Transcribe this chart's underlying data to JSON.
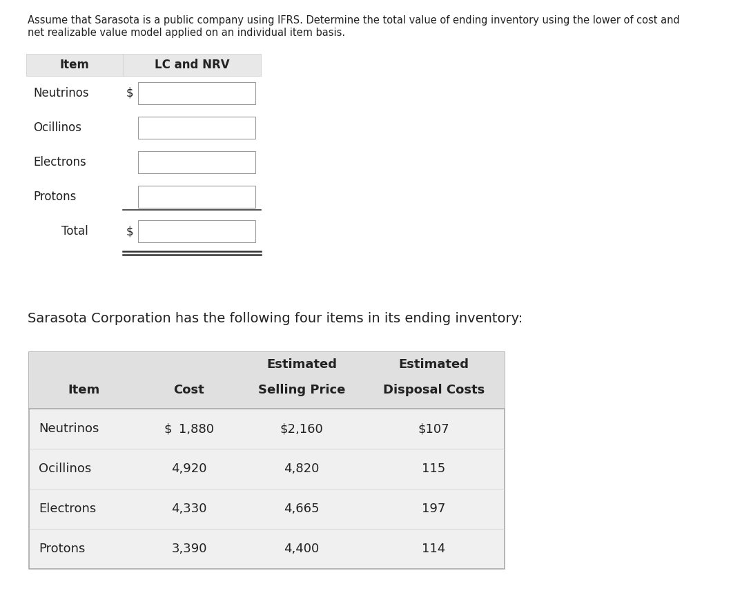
{
  "title_line1": "Assume that Sarasota is a public company using IFRS. Determine the total value of ending inventory using the lower of cost and",
  "title_line2": "net realizable value model applied on an individual item basis.",
  "subtitle_text": "Sarasota Corporation has the following four items in its ending inventory:",
  "input_table": {
    "header": [
      "Item",
      "LC and NRV"
    ],
    "rows": [
      "Neutrinos",
      "Ocillinos",
      "Electrons",
      "Protons"
    ],
    "total_label": "Total",
    "dollar_sign_rows": [
      "Neutrinos",
      "Total"
    ]
  },
  "data_table": {
    "header_row1": [
      "Estimated",
      "Estimated"
    ],
    "header_row2": [
      "Item",
      "Cost",
      "Selling Price",
      "Disposal Costs"
    ],
    "rows": [
      [
        "Neutrinos",
        "$  1,880",
        "$2,160",
        "$107"
      ],
      [
        "Ocillinos",
        "4,920",
        "4,820",
        "115"
      ],
      [
        "Electrons",
        "4,330",
        "4,665",
        "197"
      ],
      [
        "Protons",
        "3,390",
        "4,400",
        "114"
      ]
    ]
  },
  "bg_color": "#ffffff",
  "input_header_bg": "#e8e8e8",
  "data_header_bg": "#e0e0e0",
  "data_table_bg": "#f0f0f0",
  "input_box_bg": "#ffffff",
  "title_fontsize": 10.5,
  "subtitle_fontsize": 14,
  "table_fontsize": 13,
  "input_table_fontsize": 12
}
